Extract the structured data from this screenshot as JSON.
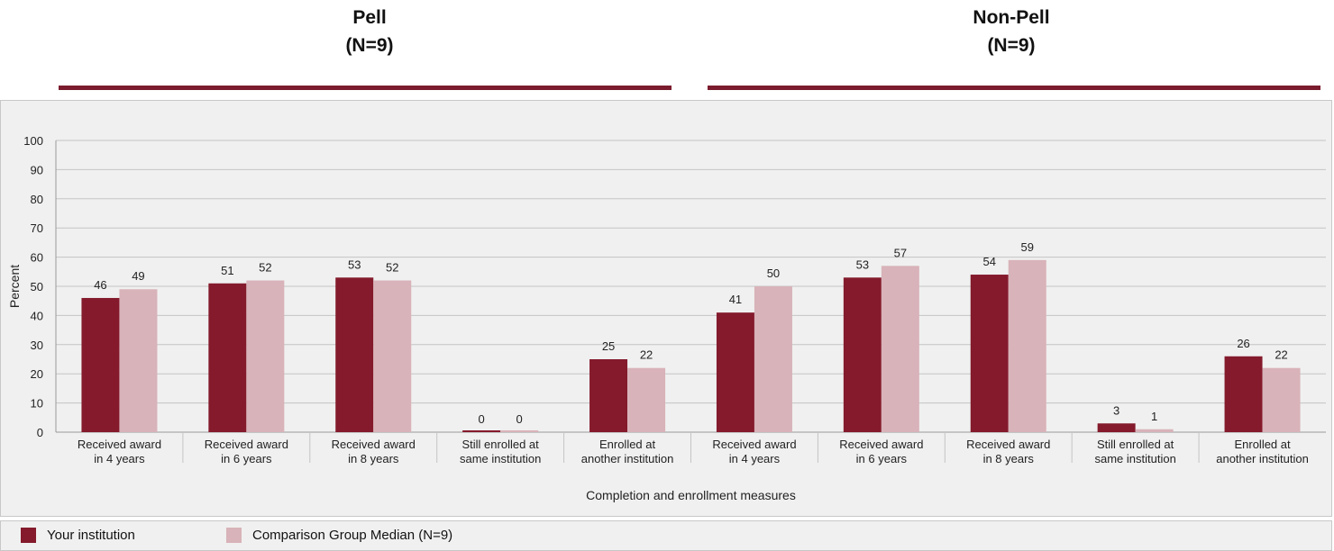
{
  "groups": [
    {
      "title": "Pell",
      "subtitle": "(N=9)"
    },
    {
      "title": "Non-Pell",
      "subtitle": "(N=9)"
    }
  ],
  "colors": {
    "your_institution": "#841a2c",
    "comparison": "#d8b3b9",
    "gridline": "#c4c4c4",
    "rule": "#7b1c2e"
  },
  "chart_data": {
    "type": "bar",
    "ylabel": "Percent",
    "xlabel": "Completion and enrollment measures",
    "ylim": [
      0,
      100
    ],
    "yticks": [
      0,
      10,
      20,
      30,
      40,
      50,
      60,
      70,
      80,
      90,
      100
    ],
    "grid": true,
    "legend_position": "bottom",
    "categories": [
      [
        "Received award",
        "in 4 years"
      ],
      [
        "Received award",
        "in 6 years"
      ],
      [
        "Received award",
        "in 8 years"
      ],
      [
        "Still enrolled at",
        "same institution"
      ],
      [
        "Enrolled at",
        "another institution"
      ],
      [
        "Received award",
        "in 4 years"
      ],
      [
        "Received award",
        "in 6 years"
      ],
      [
        "Received award",
        "in 8 years"
      ],
      [
        "Still enrolled at",
        "same institution"
      ],
      [
        "Enrolled at",
        "another institution"
      ]
    ],
    "series": [
      {
        "name": "Your institution",
        "values": [
          46,
          51,
          53,
          0,
          25,
          41,
          53,
          54,
          3,
          26
        ]
      },
      {
        "name": "Comparison Group Median (N=9)",
        "values": [
          49,
          52,
          52,
          0,
          22,
          50,
          57,
          59,
          1,
          22
        ]
      }
    ]
  }
}
